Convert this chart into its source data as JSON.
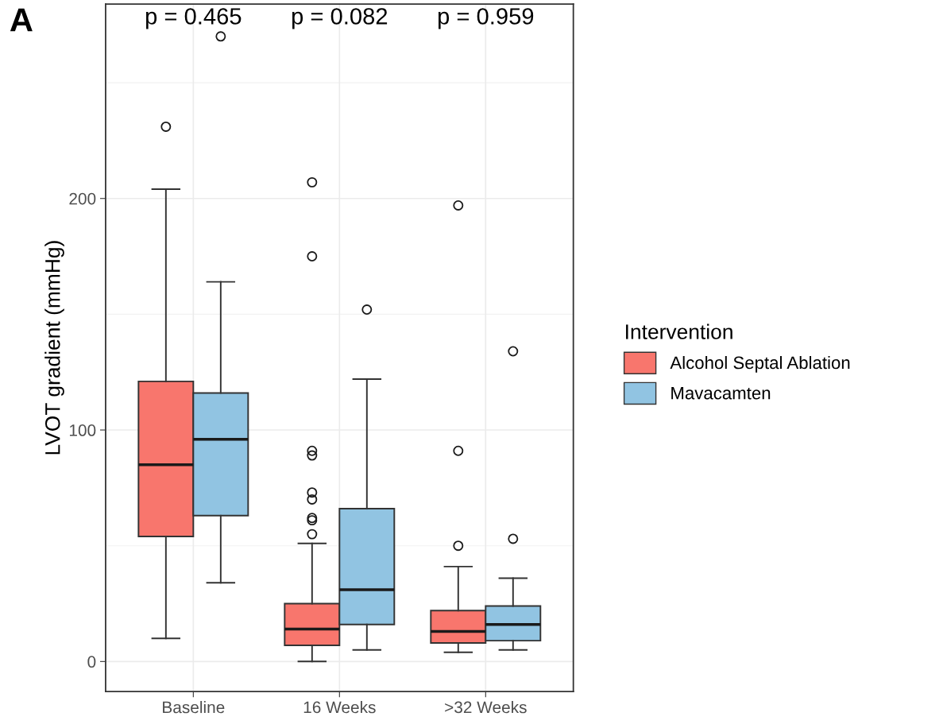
{
  "chart_data": {
    "type": "box",
    "ylabel": "LVOT gradient (mmHg)",
    "legend_title": "Intervention",
    "categories": [
      "Baseline",
      "16 Weeks",
      ">32 Weeks"
    ],
    "ylim": [
      -13,
      284
    ],
    "yticks": [
      0,
      100,
      200
    ],
    "grid": true,
    "legend": "right",
    "annotations": [
      "A",
      "p = 0.465",
      "p = 0.082",
      "p = 0.959"
    ],
    "series": [
      {
        "name": "Alcohol Septal Ablation",
        "color": "#f8766d",
        "boxes": [
          {
            "low": 10,
            "q1": 54,
            "median": 85,
            "q3": 121,
            "high": 204,
            "outliers": [
              231
            ]
          },
          {
            "low": 0,
            "q1": 7,
            "median": 14,
            "q3": 25,
            "high": 51,
            "outliers": [
              207,
              175,
              91,
              89,
              73,
              70,
              62,
              61,
              55
            ]
          },
          {
            "low": 4,
            "q1": 8,
            "median": 13,
            "q3": 22,
            "high": 41,
            "outliers": [
              50,
              91,
              197
            ]
          }
        ]
      },
      {
        "name": "Mavacamten",
        "color": "#91c4e2",
        "boxes": [
          {
            "low": 34,
            "q1": 63,
            "median": 96,
            "q3": 116,
            "high": 164,
            "outliers": [
              270
            ]
          },
          {
            "low": 5,
            "q1": 16,
            "median": 31,
            "q3": 66,
            "high": 122,
            "outliers": [
              152
            ]
          },
          {
            "low": 5,
            "q1": 9,
            "median": 16,
            "q3": 24,
            "high": 36,
            "outliers": [
              53,
              134
            ]
          }
        ]
      }
    ]
  }
}
